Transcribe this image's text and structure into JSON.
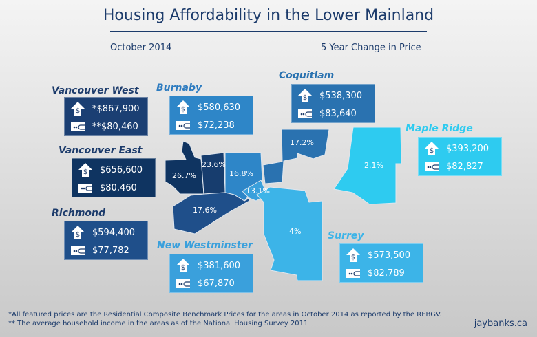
{
  "title": "Housing Affordability in the Lower Mainland",
  "date": "October 2014",
  "change_label": "5 Year Change in Price",
  "colors": {
    "title": "#1c3b6b",
    "vancouver_west": "#0f3461",
    "vancouver_east": "#173d6e",
    "richmond": "#1f4f8a",
    "burnaby": "#2e86c8",
    "new_westminster": "#3aa0dc",
    "coquitlam": "#2a72b0",
    "surrey": "#3cb4e8",
    "maple_ridge": "#2ecbf0"
  },
  "icons": {
    "price": "house-dollar-icon",
    "income": "wallet-icon"
  },
  "areas": [
    {
      "name": "Vancouver West",
      "price": "*$867,900",
      "income": "**$80,460",
      "change": "26.7%"
    },
    {
      "name": "Vancouver East",
      "price": "$656,600",
      "income": "$80,460",
      "change": "23.6%"
    },
    {
      "name": "Richmond",
      "price": "$594,400",
      "income": "$77,782",
      "change": "17.6%"
    },
    {
      "name": "Burnaby",
      "price": "$580,630",
      "income": "$72,238",
      "change": "16.8%"
    },
    {
      "name": "New Westminster",
      "price": "$381,600",
      "income": "$67,870",
      "change": "13.1%"
    },
    {
      "name": "Coquitlam",
      "price": "$538,300",
      "income": "$83,640",
      "change": "17.2%"
    },
    {
      "name": "Surrey",
      "price": "$573,500",
      "income": "$82,789",
      "change": "4%"
    },
    {
      "name": "Maple Ridge",
      "price": "$393,200",
      "income": "$82,827",
      "change": "2.1%"
    }
  ],
  "footnotes": [
    "*All featured prices are the Residential Composite Benchmark Prices for the areas in October 2014 as reported by the REBGV.",
    "** The average household income in the areas as of the National Housing Survey 2011"
  ],
  "brand": "jaybanks.ca"
}
